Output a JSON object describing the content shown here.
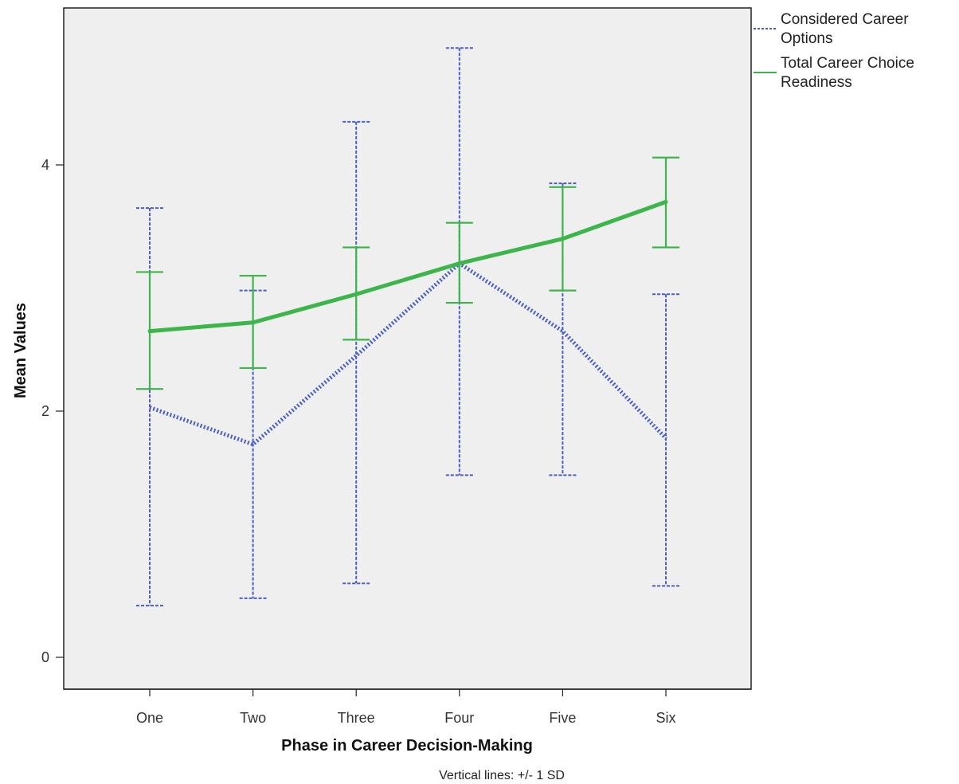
{
  "chart_data": {
    "type": "line",
    "title": "",
    "xlabel": "Phase in Career Decision-Making",
    "ylabel": "Mean Values",
    "footnote": "Vertical lines: +/- 1 SD",
    "categories": [
      "One",
      "Two",
      "Three",
      "Four",
      "Five",
      "Six"
    ],
    "ylim": [
      -0.28,
      5.3
    ],
    "yticks": [
      0,
      2,
      4
    ],
    "grid": false,
    "legend_position": "right",
    "series": [
      {
        "name": "Considered Career Options",
        "style": "dotted",
        "color": "#4a5fc4",
        "values": [
          2.03,
          1.73,
          2.45,
          3.2,
          2.65,
          1.78
        ],
        "sd_low": [
          0.42,
          0.48,
          0.6,
          1.48,
          1.48,
          0.58
        ],
        "sd_high": [
          3.65,
          2.98,
          4.35,
          4.95,
          3.85,
          2.95
        ]
      },
      {
        "name": "Total Career Choice Readiness",
        "style": "solid",
        "color": "#3cb64a",
        "values": [
          2.65,
          2.72,
          2.95,
          3.2,
          3.4,
          3.7
        ],
        "sd_low": [
          2.18,
          2.35,
          2.58,
          2.88,
          2.98,
          3.33
        ],
        "sd_high": [
          3.13,
          3.1,
          3.33,
          3.53,
          3.82,
          4.06
        ]
      }
    ]
  }
}
